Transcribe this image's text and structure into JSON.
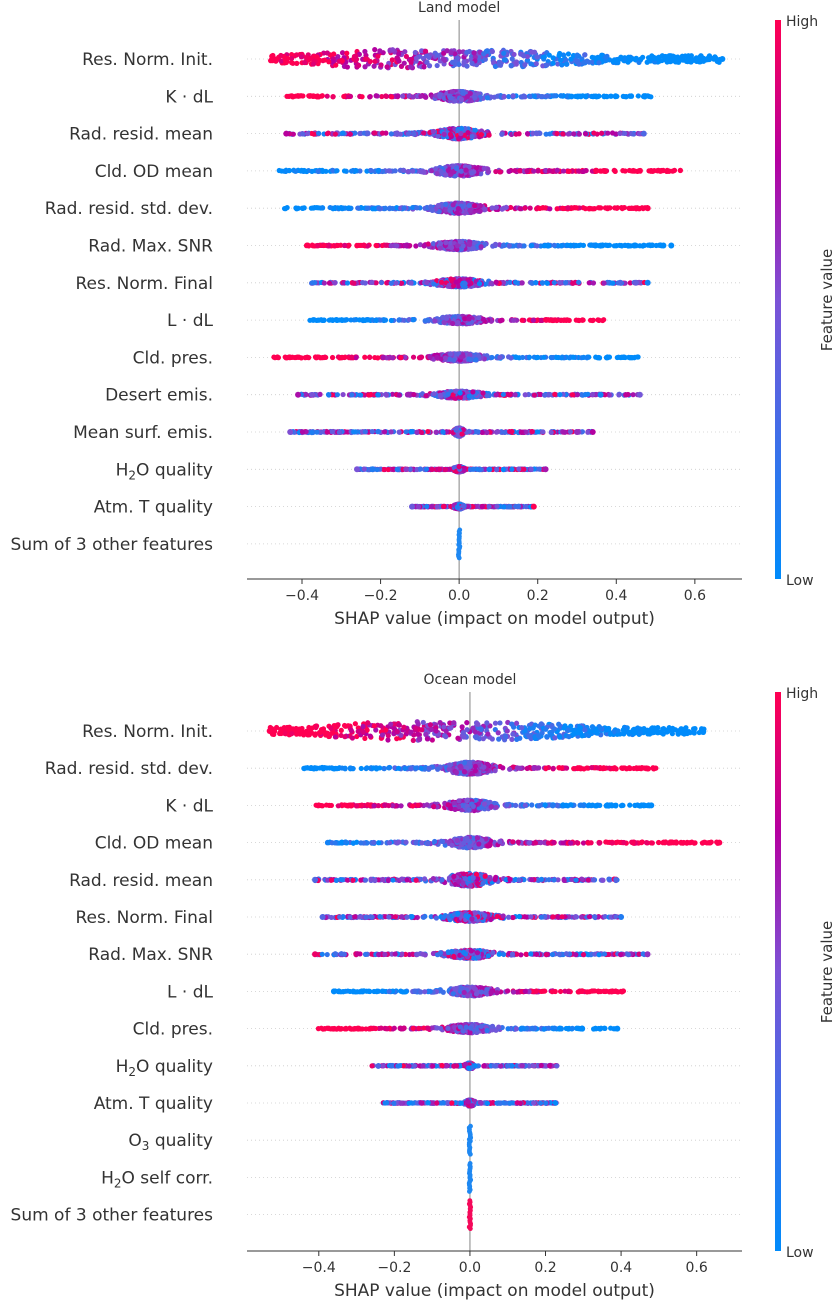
{
  "chart_data": [
    {
      "type": "scatter",
      "subtype": "shap-beeswarm",
      "title": "Land model",
      "xlabel": "SHAP value (impact on model output)",
      "ylabel": "",
      "xlim": [
        -0.54,
        0.72
      ],
      "xticks": [
        -0.4,
        -0.2,
        0.0,
        0.2,
        0.4,
        0.6
      ],
      "xtick_labels": [
        "−0.4",
        "−0.2",
        "0.0",
        "0.2",
        "0.4",
        "0.6"
      ],
      "colorbar": {
        "label": "Feature value",
        "high": "High",
        "low": "Low",
        "high_color": "#ff0052",
        "low_color": "#008bfb"
      },
      "features": [
        {
          "label": "Res. Norm. Init.",
          "min": -0.48,
          "max": 0.67,
          "width": 0.68,
          "lowside": "pos",
          "mode": "bulge",
          "outliers": [
            0.61,
            0.67
          ]
        },
        {
          "label": "K · dL",
          "min": -0.44,
          "max": 0.49,
          "width": 0.36,
          "lowside": "pos",
          "mode": "hump",
          "outliers": []
        },
        {
          "label": "Rad. resid. mean",
          "min": -0.44,
          "max": 0.47,
          "width": 0.38,
          "lowside": "mixed",
          "mode": "hump",
          "outliers": [
            -0.44,
            0.47
          ]
        },
        {
          "label": "Cld. OD mean",
          "min": -0.46,
          "max": 0.57,
          "width": 0.38,
          "lowside": "neg",
          "mode": "hump",
          "outliers": []
        },
        {
          "label": "Rad. resid. std. dev.",
          "min": -0.45,
          "max": 0.48,
          "width": 0.38,
          "lowside": "neg",
          "mode": "hump",
          "outliers": [
            0.48
          ]
        },
        {
          "label": "Rad. Max. SNR",
          "min": -0.39,
          "max": 0.54,
          "width": 0.3,
          "lowside": "pos",
          "mode": "hump",
          "outliers": [
            0.52,
            0.54
          ]
        },
        {
          "label": "Res. Norm. Final",
          "min": -0.39,
          "max": 0.48,
          "width": 0.3,
          "lowside": "mixed",
          "mode": "hump",
          "outliers": [
            0.41,
            0.45,
            0.48
          ]
        },
        {
          "label": "L · dL",
          "min": -0.38,
          "max": 0.38,
          "width": 0.28,
          "lowside": "neg",
          "mode": "hump",
          "outliers": []
        },
        {
          "label": "Cld. pres.",
          "min": -0.48,
          "max": 0.46,
          "width": 0.28,
          "lowside": "pos",
          "mode": "hump",
          "outliers": []
        },
        {
          "label": "Desert emis.",
          "min": -0.41,
          "max": 0.46,
          "width": 0.26,
          "lowside": "mixed",
          "mode": "hump",
          "outliers": [
            -0.41,
            0.36,
            0.46
          ]
        },
        {
          "label": "Mean surf. emis.",
          "min": -0.43,
          "max": 0.34,
          "width": 0.3,
          "lowside": "mixed",
          "mode": "bar",
          "outliers": [
            -0.43,
            0.3,
            0.34
          ]
        },
        {
          "label": "H$_2$O quality",
          "label_parts": [
            "H",
            "2",
            "O quality"
          ],
          "min": -0.26,
          "max": 0.22,
          "width": 0.2,
          "lowside": "mixed",
          "mode": "bar",
          "outliers": [
            -0.26,
            -0.22,
            0.22
          ]
        },
        {
          "label": "Atm. T quality",
          "min": -0.12,
          "max": 0.19,
          "width": 0.18,
          "lowside": "mixed",
          "mode": "bar",
          "outliers": [
            -0.12,
            0.19
          ]
        },
        {
          "label": "Sum of 3 other features",
          "min": 0.0,
          "max": 0.0,
          "width": 0.0,
          "lowside": "low",
          "mode": "bar",
          "outliers": []
        }
      ]
    },
    {
      "type": "scatter",
      "subtype": "shap-beeswarm",
      "title": "Ocean model",
      "xlabel": "SHAP value (impact on model output)",
      "ylabel": "",
      "xlim": [
        -0.59,
        0.72
      ],
      "xticks": [
        -0.4,
        -0.2,
        0.0,
        0.2,
        0.4,
        0.6
      ],
      "xtick_labels": [
        "−0.4",
        "−0.2",
        "0.0",
        "0.2",
        "0.4",
        "0.6"
      ],
      "colorbar": {
        "label": "Feature value",
        "high": "High",
        "low": "Low",
        "high_color": "#ff0052",
        "low_color": "#008bfb"
      },
      "features": [
        {
          "label": "Res. Norm. Init.",
          "min": -0.53,
          "max": 0.62,
          "width": 0.68,
          "lowside": "pos",
          "mode": "bulge",
          "outliers": [
            -0.53
          ]
        },
        {
          "label": "Rad. resid. std. dev.",
          "min": -0.44,
          "max": 0.5,
          "width": 0.44,
          "lowside": "neg",
          "mode": "hump",
          "outliers": []
        },
        {
          "label": "K · dL",
          "min": -0.41,
          "max": 0.48,
          "width": 0.38,
          "lowside": "pos",
          "mode": "hump",
          "outliers": [
            0.46,
            0.48
          ]
        },
        {
          "label": "Cld. OD mean",
          "min": -0.38,
          "max": 0.66,
          "width": 0.38,
          "lowside": "neg",
          "mode": "hump",
          "outliers": [
            0.66
          ]
        },
        {
          "label": "Rad. resid. mean",
          "min": -0.41,
          "max": 0.39,
          "width": 0.46,
          "lowside": "mixed",
          "mode": "hump",
          "outliers": [
            -0.41
          ]
        },
        {
          "label": "Res. Norm. Final",
          "min": -0.39,
          "max": 0.4,
          "width": 0.32,
          "lowside": "mixed",
          "mode": "hump",
          "outliers": [
            -0.39,
            0.4
          ]
        },
        {
          "label": "Rad. Max. SNR",
          "min": -0.41,
          "max": 0.47,
          "width": 0.3,
          "lowside": "mixed",
          "mode": "hump",
          "outliers": [
            -0.41,
            0.47
          ]
        },
        {
          "label": "L · dL",
          "min": -0.36,
          "max": 0.42,
          "width": 0.32,
          "lowside": "neg",
          "mode": "hump",
          "outliers": [
            -0.36
          ]
        },
        {
          "label": "Cld. pres.",
          "min": -0.41,
          "max": 0.39,
          "width": 0.3,
          "lowside": "pos",
          "mode": "hump",
          "outliers": [
            0.39
          ]
        },
        {
          "label": "H$_2$O quality",
          "label_parts": [
            "H",
            "2",
            "O quality"
          ],
          "min": -0.26,
          "max": 0.23,
          "width": 0.2,
          "lowside": "mixed",
          "mode": "bar",
          "outliers": []
        },
        {
          "label": "Atm. T quality",
          "min": -0.23,
          "max": 0.23,
          "width": 0.22,
          "lowside": "mixed",
          "mode": "bar",
          "outliers": []
        },
        {
          "label": "O$_3$ quality",
          "label_parts": [
            "O",
            "3",
            " quality"
          ],
          "min": 0.0,
          "max": 0.0,
          "width": 0.0,
          "lowside": "low",
          "mode": "bar",
          "outliers": []
        },
        {
          "label": "H$_2$O self corr.",
          "label_parts": [
            "H",
            "2",
            "O self corr."
          ],
          "min": 0.0,
          "max": 0.0,
          "width": 0.0,
          "lowside": "low",
          "mode": "bar",
          "outliers": []
        },
        {
          "label": "Sum of 3 other features",
          "min": 0.0,
          "max": 0.0,
          "width": 0.0,
          "lowside": "high",
          "mode": "bar",
          "outliers": []
        }
      ]
    }
  ]
}
